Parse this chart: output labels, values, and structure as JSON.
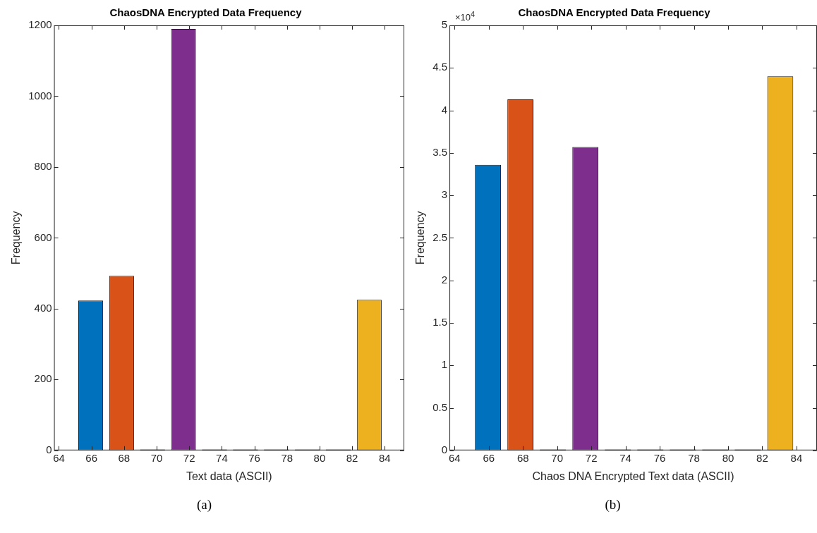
{
  "chart_data": [
    {
      "type": "histogram",
      "title": "ChaosDNA Encrypted Data Frequency",
      "xlabel": "Text data (ASCII)",
      "ylabel": "Frequency",
      "bins": [
        65,
        66.9,
        68.8,
        70.7,
        72.6,
        74.5,
        76.4,
        78.3,
        80.2,
        82.1,
        84
      ],
      "values": [
        423,
        493,
        0,
        1190,
        0,
        0,
        0,
        0,
        0,
        425
      ],
      "colors": [
        "#0072bd",
        "#d95319",
        "#7e2f8e",
        "#7e2f8e",
        "#7e2f8e",
        "#7e2f8e",
        "#7e2f8e",
        "#7e2f8e",
        "#7e2f8e",
        "#edb120"
      ],
      "xlim": [
        63.7,
        85.2
      ],
      "xticks": [
        64,
        66,
        68,
        70,
        72,
        74,
        76,
        78,
        80,
        82,
        84
      ],
      "ylim": [
        0,
        1200
      ],
      "yticks": [
        0,
        200,
        400,
        600,
        800,
        1000,
        1200
      ],
      "grid": false,
      "legend": false,
      "annotations": [
        "(a)"
      ]
    },
    {
      "type": "histogram",
      "title": "ChaosDNA Encrypted Data Frequency",
      "xlabel": "Chaos DNA Encrypted Text data (ASCII)",
      "ylabel": "Frequency",
      "bins": [
        65,
        66.9,
        68.8,
        70.7,
        72.6,
        74.5,
        76.4,
        78.3,
        80.2,
        82.1,
        84
      ],
      "values": [
        3.36,
        4.13,
        0,
        3.57,
        0,
        0,
        0,
        0,
        0,
        4.4
      ],
      "colors": [
        "#0072bd",
        "#d95319",
        "#7e2f8e",
        "#7e2f8e",
        "#7e2f8e",
        "#7e2f8e",
        "#7e2f8e",
        "#7e2f8e",
        "#7e2f8e",
        "#edb120"
      ],
      "xlim": [
        63.7,
        85.2
      ],
      "xticks": [
        64,
        66,
        68,
        70,
        72,
        74,
        76,
        78,
        80,
        82,
        84
      ],
      "ylim": [
        0,
        5
      ],
      "yticks": [
        0,
        0.5,
        1,
        1.5,
        2,
        2.5,
        3,
        3.5,
        4,
        4.5,
        5
      ],
      "grid": false,
      "legend": false,
      "annotations": [
        "×10$^{4}$",
        "(b)"
      ]
    }
  ]
}
